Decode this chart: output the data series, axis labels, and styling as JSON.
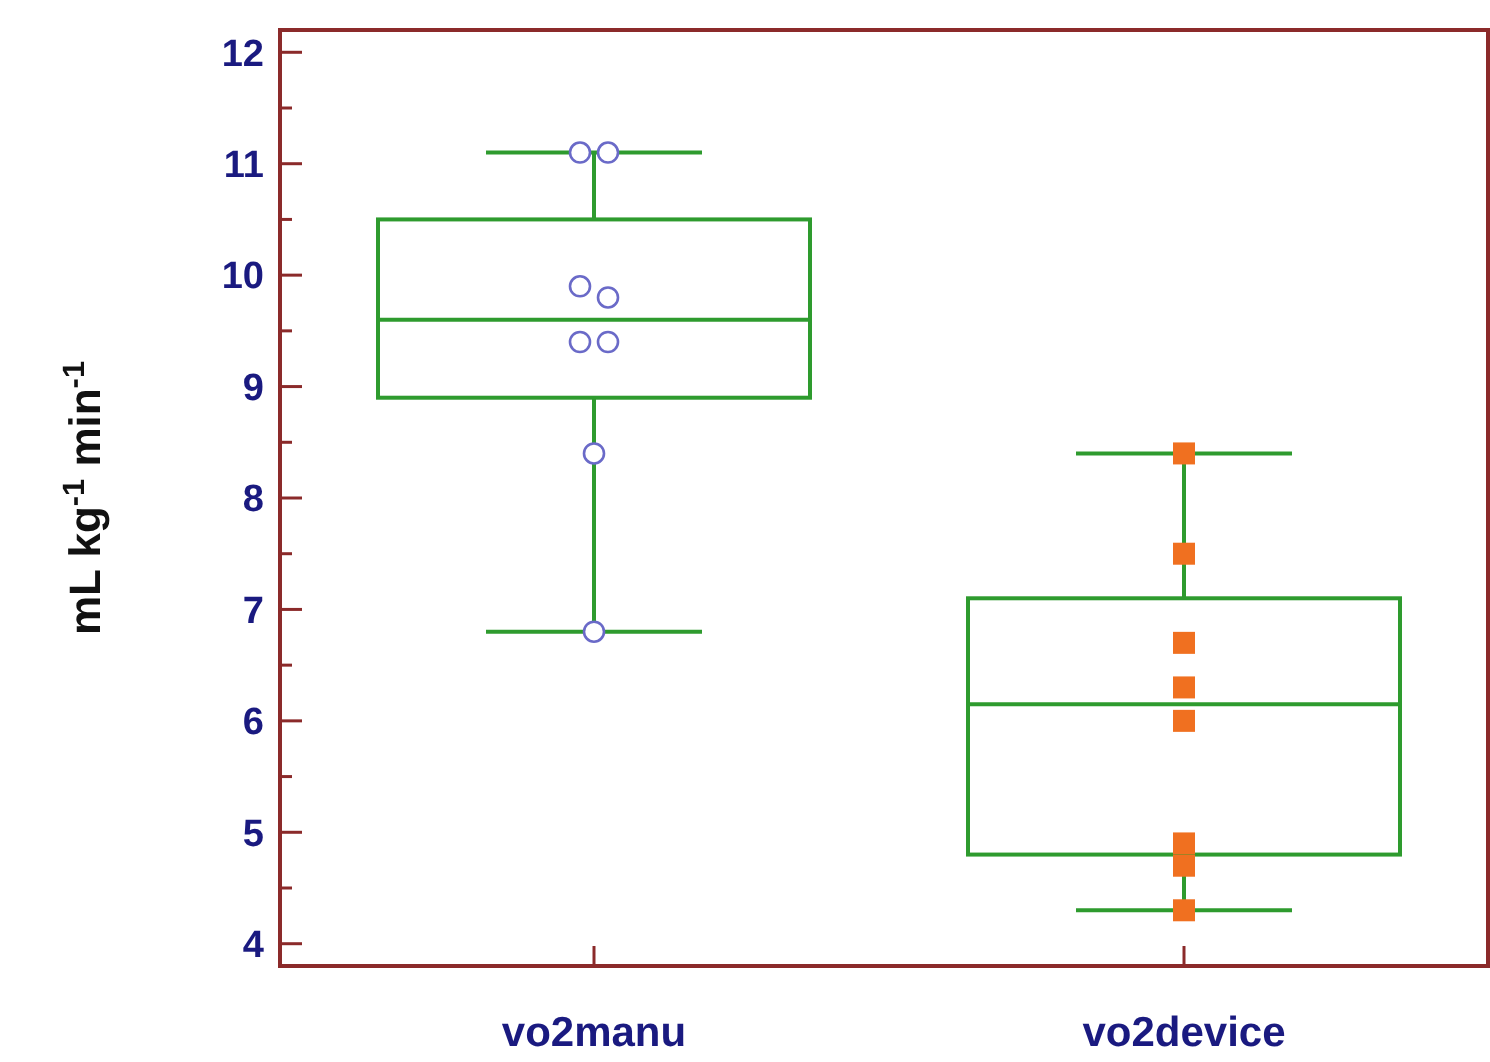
{
  "chart_data": {
    "type": "box",
    "ylabel": "mL kg$^{-1}$ min$^{-1}$",
    "categories": [
      "vo2manu",
      "vo2device"
    ],
    "ylim": [
      3.8,
      12.2
    ],
    "yticks": [
      4,
      {
        "value": 4.5,
        "label": null
      },
      5,
      {
        "value": 5.5,
        "label": null
      },
      6,
      {
        "value": 6.5,
        "label": null
      },
      7,
      {
        "value": 7.5,
        "label": null
      },
      8,
      {
        "value": 8.5,
        "label": null
      },
      9,
      {
        "value": 9.5,
        "label": null
      },
      10,
      {
        "value": 10.5,
        "label": null
      },
      11,
      {
        "value": 11.5,
        "label": null
      },
      12
    ],
    "grid": false,
    "series": [
      {
        "color": "#2e9b2e",
        "boxes": [
          {
            "low": 6.8,
            "q1": 8.9,
            "median": 9.6,
            "q3": 10.5,
            "high": 11.1
          },
          {
            "low": 4.3,
            "q1": 4.8,
            "median": 6.15,
            "q3": 7.1,
            "high": 8.4
          }
        ]
      },
      {
        "type": "scatter",
        "color": "#6a6ac8",
        "marker": "circle",
        "x": [
          "vo2manu",
          "vo2manu",
          "vo2manu",
          "vo2manu",
          "vo2manu",
          "vo2manu",
          "vo2manu",
          "vo2manu"
        ],
        "values": [
          11.1,
          11.1,
          9.9,
          9.8,
          9.4,
          9.4,
          8.4,
          6.8
        ]
      },
      {
        "type": "scatter",
        "color": "#f07020",
        "marker": "square",
        "x": [
          "vo2device",
          "vo2device",
          "vo2device",
          "vo2device",
          "vo2device",
          "vo2device",
          "vo2device",
          "vo2device"
        ],
        "values": [
          8.4,
          7.5,
          6.7,
          6.3,
          6.0,
          4.9,
          4.7,
          4.3
        ]
      }
    ]
  }
}
